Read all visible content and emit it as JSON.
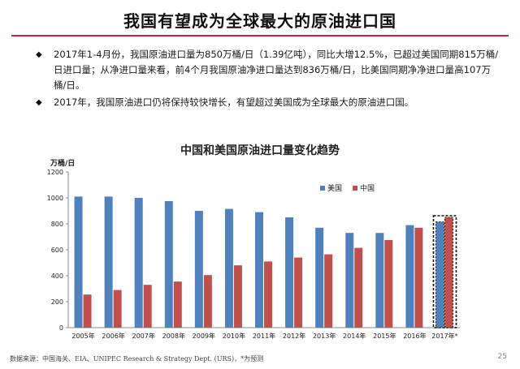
{
  "slide": {
    "title": "我国有望成为全球最大的原油进口国",
    "bullets": [
      "2017年1-4月份，我国原油进口量为850万桶/日（1.39亿吨），同比大增12.5%，已超过美国同期815万桶/日进口量；从净进口量来看，前4个月我国原油净进口量达到836万桶/日，比美国同期净净进口量高107万桶/日。",
      "2017年，我国原油进口仍将保持较快增长，有望超过美国成为全球最大的原油进口国。"
    ],
    "bullet_marker": "◆",
    "footer": "数据来源：中国海关、EIA、UNIPEC Research & Strategy Dept. (URS)，*为预测",
    "page_number": "25"
  },
  "chart_data": {
    "type": "bar",
    "title": "中国和美国原油进口量变化趋势",
    "ylabel": "万桶/日",
    "ylim": [
      0,
      1200
    ],
    "yticks": [
      0,
      200,
      400,
      600,
      800,
      1000,
      1200
    ],
    "categories": [
      "2005年",
      "2006年",
      "2007年",
      "2008年",
      "2009年",
      "2010年",
      "2011年",
      "2012年",
      "2013年",
      "2014年",
      "2015年",
      "2016年",
      "2017年*"
    ],
    "series": [
      {
        "name": "美国",
        "color": "#4f81bd",
        "values": [
          1010,
          1010,
          1000,
          975,
          900,
          915,
          890,
          850,
          770,
          730,
          730,
          790,
          815
        ]
      },
      {
        "name": "中国",
        "color": "#c0504d",
        "values": [
          255,
          290,
          330,
          355,
          405,
          480,
          510,
          540,
          565,
          615,
          675,
          770,
          850
        ]
      }
    ],
    "forecast_index": 12,
    "legend_position": "top-right",
    "grid": false
  }
}
